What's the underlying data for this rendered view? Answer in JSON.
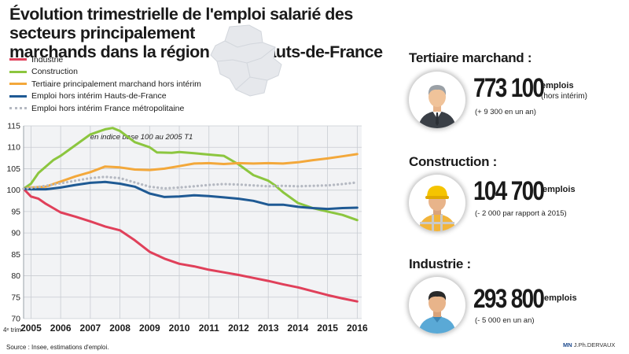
{
  "header": {
    "title_line1": "Évolution trimestrielle de l'emploi salarié des secteurs principalement",
    "title_line2a": "marchands dans la région",
    "title_line2b": "Hauts-de-France"
  },
  "legend": [
    {
      "label": "Industrie",
      "color": "#e0405a",
      "style": "solid"
    },
    {
      "label": "Construction",
      "color": "#8cc63f",
      "style": "solid"
    },
    {
      "label": "Tertiaire principalement marchand hors intérim",
      "color": "#f3a83b",
      "style": "solid"
    },
    {
      "label": "Emploi hors intérim Hauts-de-France",
      "color": "#1f5a94",
      "style": "solid"
    },
    {
      "label": "Emploi hors intérim France métropolitaine",
      "color": "#b5b9c2",
      "style": "dotted"
    }
  ],
  "chart_data": {
    "type": "line",
    "annotation": "en indice base 100 au 2005 T1",
    "x_prefix_label": "4ᵉ trim",
    "x_ticks": [
      "2005",
      "2006",
      "2007",
      "2008",
      "2009",
      "2010",
      "2011",
      "2012",
      "2013",
      "2014",
      "2015",
      "2016"
    ],
    "ylim": [
      70,
      115
    ],
    "y_ticks": [
      70,
      75,
      80,
      85,
      90,
      95,
      100,
      105,
      110,
      115
    ],
    "grid": true,
    "series": [
      {
        "name": "Industrie",
        "color": "#e0405a",
        "style": "solid",
        "points": [
          [
            2004.75,
            100.3
          ],
          [
            2005.0,
            98.5
          ],
          [
            2005.25,
            98.0
          ],
          [
            2005.5,
            96.8
          ],
          [
            2005.75,
            95.8
          ],
          [
            2006.0,
            94.8
          ],
          [
            2006.5,
            93.8
          ],
          [
            2007.0,
            92.7
          ],
          [
            2007.5,
            91.5
          ],
          [
            2008.0,
            90.6
          ],
          [
            2008.5,
            88.3
          ],
          [
            2009.0,
            85.6
          ],
          [
            2009.5,
            84.0
          ],
          [
            2010.0,
            82.8
          ],
          [
            2010.5,
            82.2
          ],
          [
            2011.0,
            81.4
          ],
          [
            2011.5,
            80.8
          ],
          [
            2012.0,
            80.2
          ],
          [
            2012.5,
            79.5
          ],
          [
            2013.0,
            78.8
          ],
          [
            2013.5,
            78.0
          ],
          [
            2014.0,
            77.3
          ],
          [
            2014.5,
            76.4
          ],
          [
            2015.0,
            75.5
          ],
          [
            2015.5,
            74.7
          ],
          [
            2016.0,
            74.0
          ]
        ]
      },
      {
        "name": "Construction",
        "color": "#8cc63f",
        "style": "solid",
        "points": [
          [
            2004.75,
            100.3
          ],
          [
            2005.0,
            101.5
          ],
          [
            2005.25,
            104.0
          ],
          [
            2005.5,
            105.5
          ],
          [
            2005.75,
            107.0
          ],
          [
            2006.0,
            108.0
          ],
          [
            2006.5,
            110.5
          ],
          [
            2007.0,
            113.0
          ],
          [
            2007.5,
            114.2
          ],
          [
            2007.75,
            114.5
          ],
          [
            2008.0,
            113.8
          ],
          [
            2008.5,
            111.2
          ],
          [
            2009.0,
            110.0
          ],
          [
            2009.25,
            108.8
          ],
          [
            2009.75,
            108.7
          ],
          [
            2010.0,
            108.9
          ],
          [
            2010.5,
            108.6
          ],
          [
            2011.0,
            108.3
          ],
          [
            2011.5,
            108.0
          ],
          [
            2012.0,
            106.0
          ],
          [
            2012.5,
            103.5
          ],
          [
            2013.0,
            102.2
          ],
          [
            2013.25,
            101.0
          ],
          [
            2013.5,
            99.5
          ],
          [
            2014.0,
            97.0
          ],
          [
            2014.5,
            95.8
          ],
          [
            2015.0,
            95.0
          ],
          [
            2015.5,
            94.2
          ],
          [
            2016.0,
            93.0
          ]
        ]
      },
      {
        "name": "Tertiaire principalement marchand hors intérim",
        "color": "#f3a83b",
        "style": "solid",
        "points": [
          [
            2004.75,
            100.3
          ],
          [
            2005.0,
            100.6
          ],
          [
            2005.5,
            100.8
          ],
          [
            2006.0,
            102.0
          ],
          [
            2006.5,
            103.2
          ],
          [
            2007.0,
            104.2
          ],
          [
            2007.5,
            105.5
          ],
          [
            2008.0,
            105.3
          ],
          [
            2008.5,
            104.8
          ],
          [
            2009.0,
            104.7
          ],
          [
            2009.5,
            105.0
          ],
          [
            2010.0,
            105.6
          ],
          [
            2010.5,
            106.2
          ],
          [
            2011.0,
            106.3
          ],
          [
            2011.5,
            106.1
          ],
          [
            2012.0,
            106.3
          ],
          [
            2012.5,
            106.2
          ],
          [
            2013.0,
            106.3
          ],
          [
            2013.5,
            106.2
          ],
          [
            2014.0,
            106.5
          ],
          [
            2014.5,
            107.0
          ],
          [
            2015.0,
            107.4
          ],
          [
            2015.5,
            107.9
          ],
          [
            2016.0,
            108.4
          ]
        ]
      },
      {
        "name": "Emploi hors intérim Hauts-de-France",
        "color": "#1f5a94",
        "style": "solid",
        "points": [
          [
            2004.75,
            100.3
          ],
          [
            2005.0,
            100.2
          ],
          [
            2005.5,
            100.2
          ],
          [
            2006.0,
            100.6
          ],
          [
            2006.5,
            101.2
          ],
          [
            2007.0,
            101.7
          ],
          [
            2007.5,
            101.9
          ],
          [
            2008.0,
            101.5
          ],
          [
            2008.5,
            100.8
          ],
          [
            2009.0,
            99.2
          ],
          [
            2009.5,
            98.4
          ],
          [
            2010.0,
            98.5
          ],
          [
            2010.5,
            98.8
          ],
          [
            2011.0,
            98.6
          ],
          [
            2011.5,
            98.3
          ],
          [
            2012.0,
            98.0
          ],
          [
            2012.5,
            97.5
          ],
          [
            2013.0,
            96.6
          ],
          [
            2013.5,
            96.6
          ],
          [
            2014.0,
            96.1
          ],
          [
            2014.5,
            95.8
          ],
          [
            2015.0,
            95.6
          ],
          [
            2015.5,
            95.8
          ],
          [
            2016.0,
            95.9
          ]
        ]
      },
      {
        "name": "Emploi hors intérim France métropolitaine",
        "color": "#b5b9c2",
        "style": "dotted",
        "points": [
          [
            2004.75,
            100.3
          ],
          [
            2005.0,
            100.5
          ],
          [
            2005.5,
            101.0
          ],
          [
            2006.0,
            101.6
          ],
          [
            2006.5,
            102.2
          ],
          [
            2007.0,
            102.8
          ],
          [
            2007.5,
            103.1
          ],
          [
            2008.0,
            102.8
          ],
          [
            2008.5,
            101.8
          ],
          [
            2009.0,
            100.8
          ],
          [
            2009.5,
            100.4
          ],
          [
            2010.0,
            100.6
          ],
          [
            2010.5,
            100.9
          ],
          [
            2011.0,
            101.2
          ],
          [
            2011.5,
            101.4
          ],
          [
            2012.0,
            101.3
          ],
          [
            2012.5,
            101.1
          ],
          [
            2013.0,
            100.9
          ],
          [
            2013.5,
            101.0
          ],
          [
            2014.0,
            100.9
          ],
          [
            2014.5,
            101.0
          ],
          [
            2015.0,
            101.1
          ],
          [
            2015.5,
            101.4
          ],
          [
            2016.0,
            101.8
          ]
        ]
      }
    ]
  },
  "kpis": [
    {
      "heading": "Tertiaire marchand :",
      "value": "773 100",
      "unit": "emplois",
      "unit_note": "(hors intérim)",
      "note": "(+ 9 300 en un an)",
      "icon": "businessman-icon"
    },
    {
      "heading": "Construction :",
      "value": "104 700",
      "unit": "emplois",
      "unit_note": "",
      "note": "(- 2 000 par rapport à 2015)",
      "icon": "construction-worker-icon"
    },
    {
      "heading": "Industrie :",
      "value": "293 800",
      "unit": "emplois",
      "unit_note": "",
      "note": "(- 5 000 en un an)",
      "icon": "industry-worker-icon"
    }
  ],
  "footer": {
    "source": "Source : Insee, estimations d'emploi.",
    "credit_brand": "MN",
    "credit_author": "J.Ph.DERVAUX"
  }
}
